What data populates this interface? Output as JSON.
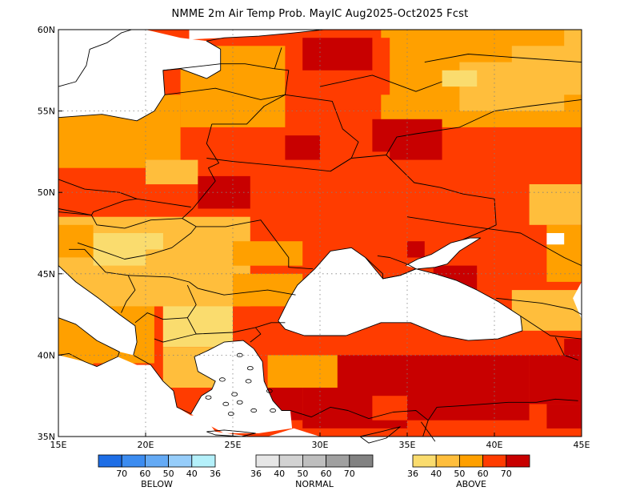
{
  "title": "NMME 2m Air Temp Prob. MayIC  Aug2025-Oct2025 Fcst",
  "map": {
    "lon_range": [
      15,
      45
    ],
    "lat_range": [
      35,
      60
    ],
    "x_ticks": [
      "15E",
      "20E",
      "25E",
      "30E",
      "35E",
      "40E",
      "45E"
    ],
    "y_ticks": [
      "35N",
      "40N",
      "45N",
      "50N",
      "55N",
      "60N"
    ],
    "grid": "dotted",
    "land_outline": "coastlines-and-borders",
    "dominant_category": "above-normal"
  },
  "legend": {
    "below": {
      "title": "BELOW",
      "labels": [
        "70",
        "60",
        "50",
        "40",
        "36"
      ],
      "colors": [
        "#1e6ee6",
        "#3c8cf0",
        "#64aaf5",
        "#96cdfa",
        "#b4f0fa"
      ]
    },
    "normal": {
      "title": "NORMAL",
      "labels": [
        "36",
        "40",
        "50",
        "60",
        "70"
      ],
      "colors": [
        "#e6e6e6",
        "#d2d2d2",
        "#bebebe",
        "#a0a0a0",
        "#828282"
      ]
    },
    "above": {
      "title": "ABOVE",
      "labels": [
        "36",
        "40",
        "50",
        "60",
        "70"
      ],
      "colors": [
        "#fadc6e",
        "#ffbe3c",
        "#ffa000",
        "#ff3c00",
        "#c80000"
      ]
    }
  }
}
